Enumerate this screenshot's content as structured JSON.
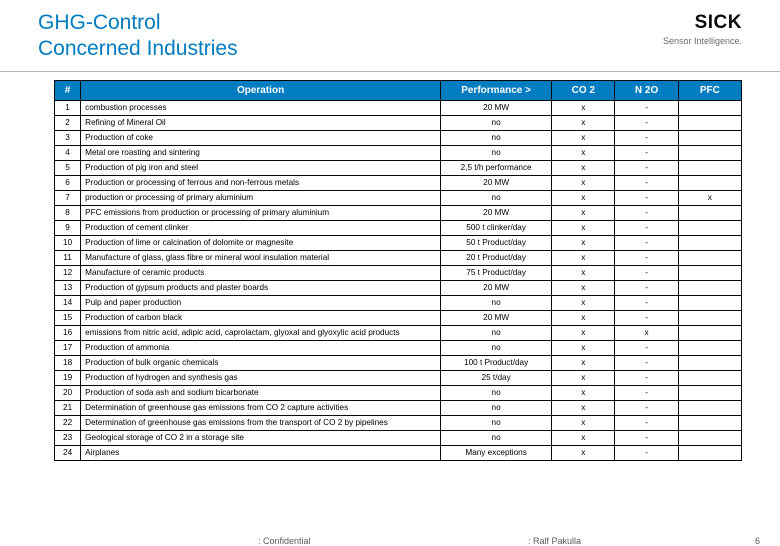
{
  "header": {
    "title_line1": "GHG-Control",
    "title_line2": "Concerned Industries",
    "logo": "SICK",
    "tagline": "Sensor Intelligence."
  },
  "columns": {
    "num": "#",
    "operation": "Operation",
    "performance": "Performance >",
    "co2": "CO 2",
    "n2o": "N 2O",
    "pfc": "PFC"
  },
  "rows": [
    {
      "n": "1",
      "op": "combustion processes",
      "perf": "20 MW",
      "co2": "x",
      "n2o": "-",
      "pfc": ""
    },
    {
      "n": "2",
      "op": "Refining of Mineral Oil",
      "perf": "no",
      "co2": "x",
      "n2o": "-",
      "pfc": ""
    },
    {
      "n": "3",
      "op": "Production of coke",
      "perf": "no",
      "co2": "x",
      "n2o": "-",
      "pfc": ""
    },
    {
      "n": "4",
      "op": "Metal ore roasting and sintering",
      "perf": "no",
      "co2": "x",
      "n2o": "-",
      "pfc": ""
    },
    {
      "n": "5",
      "op": "Production of pig iron and steel",
      "perf": "2,5 t/h performance",
      "co2": "x",
      "n2o": "-",
      "pfc": ""
    },
    {
      "n": "6",
      "op": "Production or processing of ferrous and non-ferrous metals",
      "perf": "20 MW",
      "co2": "x",
      "n2o": "-",
      "pfc": ""
    },
    {
      "n": "7",
      "op": "production or processing of primary aluminium",
      "perf": "no",
      "co2": "x",
      "n2o": "-",
      "pfc": "x"
    },
    {
      "n": "8",
      "op": "PFC emissions from production or processing of primary aluminium",
      "perf": "20 MW",
      "co2": "x",
      "n2o": "-",
      "pfc": ""
    },
    {
      "n": "9",
      "op": "Production of cement clinker",
      "perf": "500 t clinker/day",
      "co2": "x",
      "n2o": "-",
      "pfc": ""
    },
    {
      "n": "10",
      "op": "Production of lime or calcination of dolomite or magnesite",
      "perf": "50 t Product/day",
      "co2": "x",
      "n2o": "-",
      "pfc": ""
    },
    {
      "n": "11",
      "op": "Manufacture of glass, glass fibre or mineral wool insulation material",
      "perf": "20 t Product/day",
      "co2": "x",
      "n2o": "-",
      "pfc": ""
    },
    {
      "n": "12",
      "op": "Manufacture of ceramic products",
      "perf": "75 t Product/day",
      "co2": "x",
      "n2o": "-",
      "pfc": ""
    },
    {
      "n": "13",
      "op": "Production of gypsum products and plaster boards",
      "perf": "20 MW",
      "co2": "x",
      "n2o": "-",
      "pfc": ""
    },
    {
      "n": "14",
      "op": "Pulp and paper production",
      "perf": "no",
      "co2": "x",
      "n2o": "-",
      "pfc": ""
    },
    {
      "n": "15",
      "op": "Production of carbon black",
      "perf": "20 MW",
      "co2": "x",
      "n2o": "-",
      "pfc": ""
    },
    {
      "n": "16",
      "op": "emissions from nitric acid, adipic acid, caprolactam, glyoxal and glyoxylic acid products",
      "perf": "no",
      "co2": "x",
      "n2o": "x",
      "pfc": ""
    },
    {
      "n": "17",
      "op": "Production of ammonia",
      "perf": "no",
      "co2": "x",
      "n2o": "-",
      "pfc": ""
    },
    {
      "n": "18",
      "op": "Production of bulk organic chemicals",
      "perf": "100 t Product/day",
      "co2": "x",
      "n2o": "-",
      "pfc": ""
    },
    {
      "n": "19",
      "op": "Production of hydrogen and synthesis gas",
      "perf": "25 t/day",
      "co2": "x",
      "n2o": "-",
      "pfc": ""
    },
    {
      "n": "20",
      "op": "Production of soda ash and sodium bicarbonate",
      "perf": "no",
      "co2": "x",
      "n2o": "-",
      "pfc": ""
    },
    {
      "n": "21",
      "op": "Determination of greenhouse gas emissions from CO 2 capture activities",
      "perf": "no",
      "co2": "x",
      "n2o": "-",
      "pfc": ""
    },
    {
      "n": "22",
      "op": "Determination of greenhouse gas emissions from the transport of CO 2 by pipelines",
      "perf": "no",
      "co2": "x",
      "n2o": "-",
      "pfc": ""
    },
    {
      "n": "23",
      "op": "Geological storage of CO 2 in a storage site",
      "perf": "no",
      "co2": "x",
      "n2o": "-",
      "pfc": ""
    },
    {
      "n": "24",
      "op": "Airplanes",
      "perf": "Many exceptions",
      "co2": "x",
      "n2o": "-",
      "pfc": ""
    }
  ],
  "footer": {
    "confidential": ": Confidential",
    "author": ": Ralf Pakulla",
    "page": "6"
  }
}
